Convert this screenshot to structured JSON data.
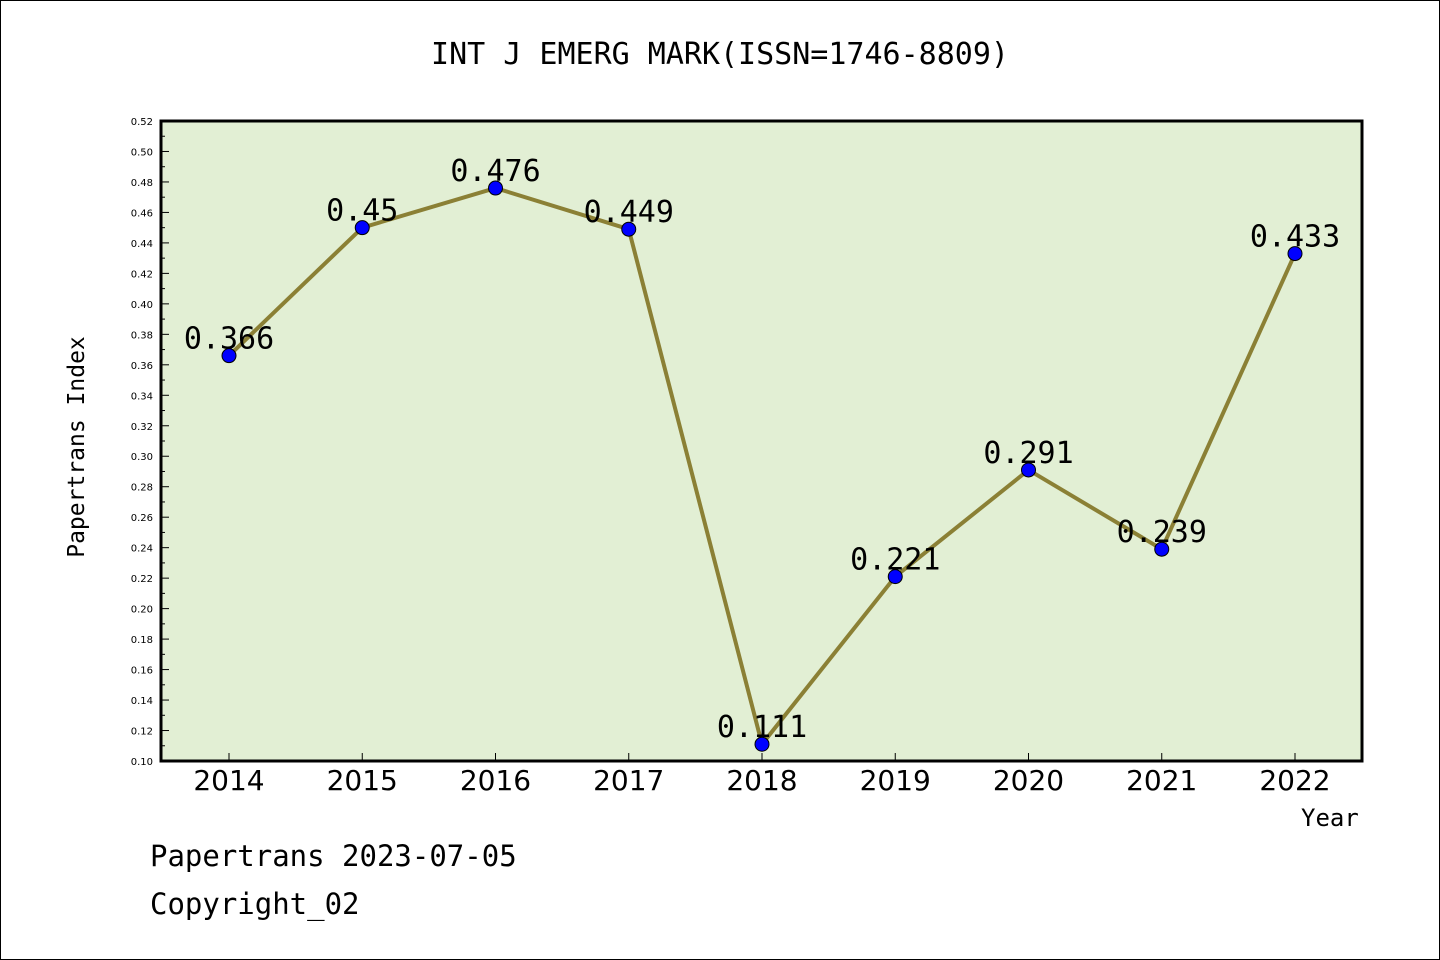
{
  "chart_data": {
    "type": "line",
    "title": "INT J EMERG MARK(ISSN=1746-8809)",
    "xlabel": "Year",
    "ylabel": "Papertrans Index",
    "x": [
      "2014",
      "2015",
      "2016",
      "2017",
      "2018",
      "2019",
      "2020",
      "2021",
      "2022"
    ],
    "series": [
      {
        "values": [
          0.366,
          0.45,
          0.476,
          0.449,
          0.111,
          0.221,
          0.291,
          0.239,
          0.433
        ],
        "labels": [
          "0.366",
          "0.45",
          "0.476",
          "0.449",
          "0.111",
          "0.221",
          "0.291",
          "0.239",
          "0.433"
        ]
      }
    ],
    "ylim": [
      0.1,
      0.52
    ],
    "yticks": [
      "0.10",
      "0.12",
      "0.14",
      "0.16",
      "0.18",
      "0.20",
      "0.22",
      "0.24",
      "0.26",
      "0.28",
      "0.30",
      "0.32",
      "0.34",
      "0.36",
      "0.38",
      "0.40",
      "0.42",
      "0.44",
      "0.46",
      "0.48",
      "0.50",
      "0.52"
    ],
    "grid": false,
    "colors": {
      "plot_background": "#e2efd4",
      "line": "#8b8035",
      "marker": "#0000ff"
    }
  },
  "footer": {
    "date": "Papertrans 2023-07-05",
    "copyright": "Copyright_02"
  }
}
